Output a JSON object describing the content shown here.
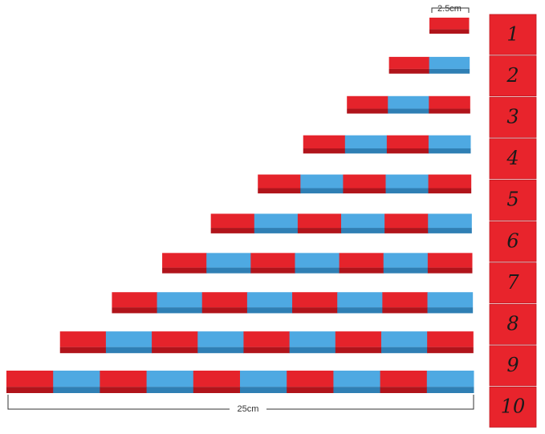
{
  "dimensions": {
    "unit_length": "2.5cm",
    "total_length": "25cm"
  },
  "cards": [
    "1",
    "2",
    "3",
    "4",
    "5",
    "6",
    "7",
    "8",
    "9",
    "10"
  ]
}
